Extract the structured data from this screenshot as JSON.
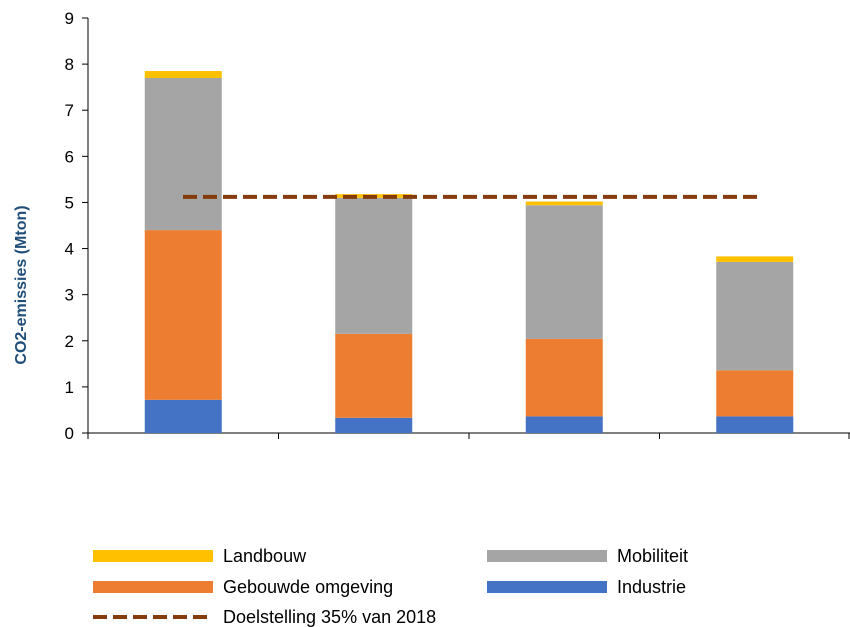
{
  "chart_data": {
    "type": "bar",
    "stacked": true,
    "title": "",
    "xlabel": "",
    "ylabel": "CO2-emissies (Mton)",
    "ylim": [
      0,
      9
    ],
    "yticks": [
      "0",
      "1",
      "2",
      "3",
      "4",
      "5",
      "6",
      "7",
      "8",
      "9"
    ],
    "categories": [
      "",
      "",
      "",
      ""
    ],
    "series": [
      {
        "name": "Industrie",
        "color": "#4472c4",
        "values": [
          0.72,
          0.33,
          0.36,
          0.36
        ]
      },
      {
        "name": "Gebouwde omgeving",
        "color": "#ed7d31",
        "values": [
          3.68,
          1.82,
          1.68,
          1.0
        ]
      },
      {
        "name": "Mobiliteit",
        "color": "#a5a5a5",
        "values": [
          3.3,
          2.95,
          2.9,
          2.35
        ]
      },
      {
        "name": "Landbouw",
        "color": "#ffc000",
        "values": [
          0.15,
          0.08,
          0.08,
          0.12
        ]
      }
    ],
    "target_line": {
      "name": "Doelstelling 35% van 2018",
      "value": 5.12,
      "color": "#843c0c",
      "style": "dashed"
    },
    "grid": false,
    "legend_position": "bottom",
    "legend_order": [
      "Landbouw",
      "Mobiliteit",
      "Gebouwde omgeving",
      "Industrie",
      "Doelstelling 35% van 2018"
    ]
  }
}
